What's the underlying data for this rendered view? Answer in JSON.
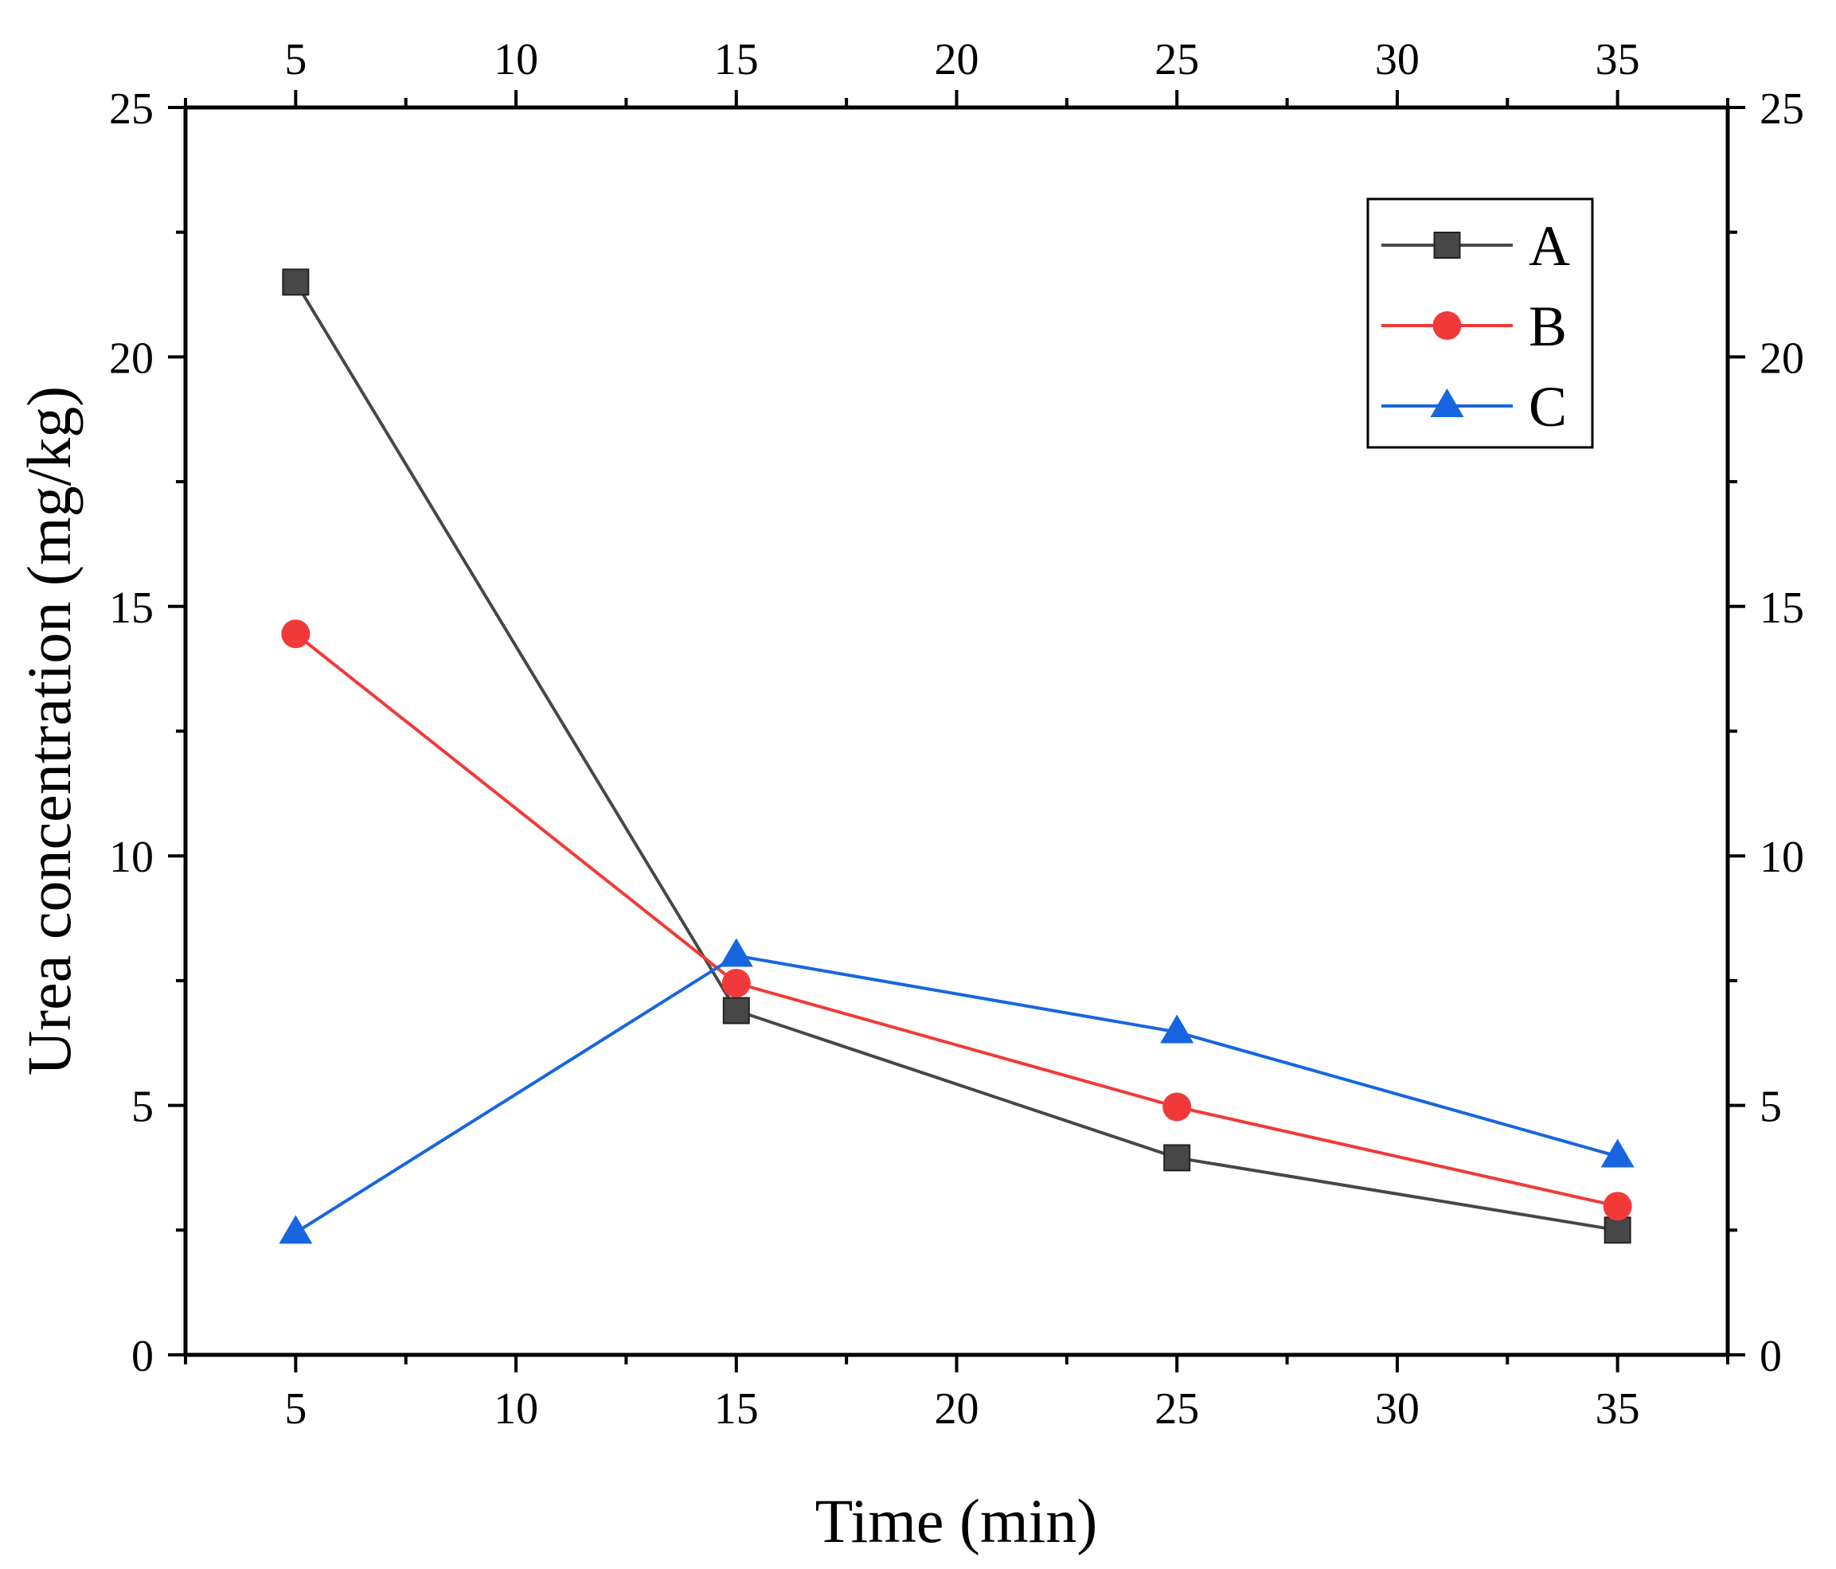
{
  "chart_data": {
    "type": "line",
    "title": "",
    "xlabel": "Time (min)",
    "ylabel": "Urea concentration (mg/kg)",
    "xlim": [
      2.5,
      37.5
    ],
    "ylim": [
      0,
      25
    ],
    "x_ticks": [
      5,
      10,
      15,
      20,
      25,
      30,
      35
    ],
    "y_ticks": [
      0,
      5,
      10,
      15,
      20,
      25
    ],
    "x_tick_labels": [
      "5",
      "10",
      "15",
      "20",
      "25",
      "30",
      "35"
    ],
    "y_tick_labels": [
      "0",
      "5",
      "10",
      "15",
      "20",
      "25"
    ],
    "top_axis_mirrored": true,
    "right_axis_mirrored": true,
    "grid": false,
    "legend_position": "top-right",
    "x": [
      5,
      15,
      25,
      35
    ],
    "series": [
      {
        "name": "A",
        "marker": "square",
        "color": "#474747",
        "values": [
          21.5,
          6.9,
          3.95,
          2.5
        ]
      },
      {
        "name": "B",
        "marker": "circle",
        "color": "#f03a3a",
        "values": [
          14.45,
          7.45,
          4.97,
          2.98
        ]
      },
      {
        "name": "C",
        "marker": "triangle",
        "color": "#1766e0",
        "values": [
          2.45,
          8.0,
          6.47,
          3.98
        ]
      }
    ]
  }
}
